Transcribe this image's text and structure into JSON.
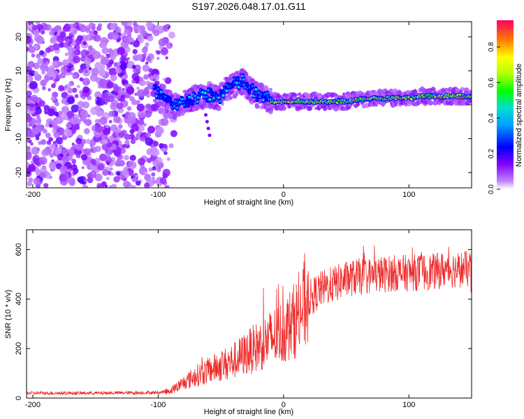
{
  "title": "S197.2026.048.17.01.G11",
  "chart_data": [
    {
      "type": "heatmap",
      "xlabel": "Height of straight line (km)",
      "ylabel": "Frequency (Hz)",
      "xlim": [
        -205,
        150
      ],
      "ylim": [
        -24.5,
        24.5
      ],
      "xticks": [
        -200,
        -100,
        0,
        100
      ],
      "yticks": [
        -20,
        -10,
        0,
        10,
        20
      ],
      "colorbar": {
        "label": "Normalized spectral amplitude",
        "range": [
          0,
          0.95
        ],
        "ticks": [
          0,
          0.2,
          0.4,
          0.6,
          0.8
        ]
      },
      "signal_track": {
        "description": "Frequency of the narrow-band signal vs height",
        "x": [
          -103,
          -95,
          -88,
          -80,
          -70,
          -60,
          -52,
          -45,
          -38,
          -33,
          -28,
          -22,
          -15,
          -8,
          0,
          10,
          20,
          30,
          40,
          50,
          60,
          70,
          80,
          90,
          100,
          110,
          120,
          130,
          140,
          150
        ],
        "y": [
          4,
          2,
          -1,
          1,
          2,
          3,
          2,
          5,
          6,
          7,
          5,
          3,
          2,
          1,
          1,
          1,
          1,
          1,
          1,
          1,
          1.5,
          2,
          2,
          2,
          2,
          2.5,
          2.5,
          2.5,
          2.5,
          2.5
        ]
      }
    },
    {
      "type": "line",
      "xlabel": "Height of straight line (km)",
      "ylabel": "SNR (10 * v/v)",
      "xlim": [
        -205,
        150
      ],
      "ylim": [
        0,
        680
      ],
      "xticks": [
        -200,
        -100,
        0,
        100
      ],
      "yticks": [
        0,
        200,
        400,
        600
      ],
      "color": "#ee2a2a",
      "trend": {
        "x": [
          -205,
          -150,
          -100,
          -90,
          -80,
          -70,
          -60,
          -50,
          -40,
          -30,
          -20,
          -10,
          0,
          10,
          20,
          30,
          40,
          50,
          60,
          70,
          80,
          90,
          100,
          110,
          120,
          130,
          140,
          150
        ],
        "y": [
          20,
          20,
          22,
          30,
          60,
          90,
          110,
          130,
          150,
          180,
          210,
          240,
          270,
          320,
          400,
          440,
          460,
          480,
          490,
          495,
          500,
          505,
          505,
          510,
          510,
          520,
          520,
          520
        ]
      }
    }
  ]
}
